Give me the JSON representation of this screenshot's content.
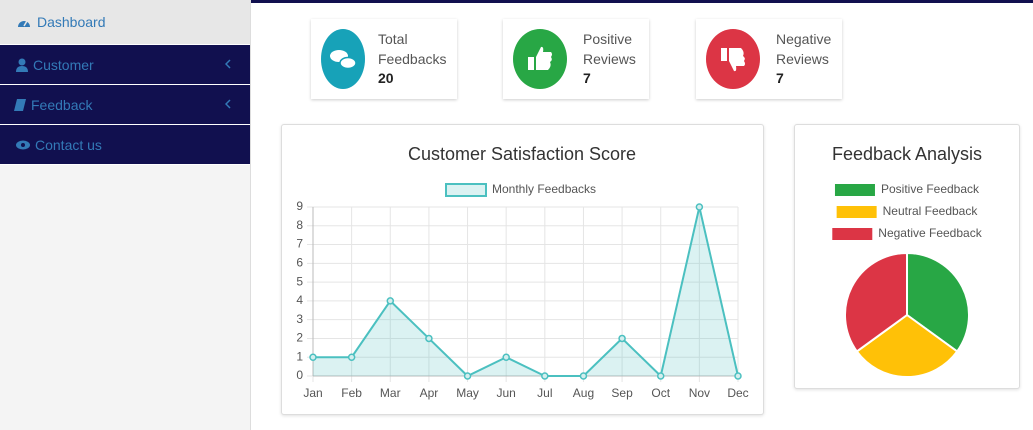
{
  "sidebar": {
    "items": [
      "Dashboard",
      "Customer",
      "Feedback",
      "Contact us"
    ]
  },
  "cards": [
    {
      "label": "Total Feedbacks",
      "value": 20,
      "color": "#17a2b8"
    },
    {
      "label": "Positive Reviews",
      "value": 7,
      "color": "#28a745"
    },
    {
      "label": "Negative Reviews",
      "value": 7,
      "color": "#dc3545"
    }
  ],
  "chart_data": [
    {
      "type": "line",
      "title": "Customer Satisfaction Score",
      "categories": [
        "Jan",
        "Feb",
        "Mar",
        "Apr",
        "May",
        "Jun",
        "Jul",
        "Aug",
        "Sep",
        "Oct",
        "Nov",
        "Dec"
      ],
      "series": [
        {
          "name": "Monthly Feedbacks",
          "color": "#4bc0c0",
          "values": [
            1,
            1,
            4,
            2,
            0,
            1,
            0,
            0,
            2,
            0,
            9,
            0
          ]
        }
      ],
      "ylim": [
        0,
        9
      ],
      "yticks": [
        0,
        1,
        2,
        3,
        4,
        5,
        6,
        7,
        8,
        9
      ],
      "grid": true
    },
    {
      "type": "pie",
      "title": "Feedback Analysis",
      "categories": [
        "Positive Feedback",
        "Neutral Feedback",
        "Negative Feedback"
      ],
      "values": [
        7,
        6,
        7
      ],
      "colors": [
        "#28a745",
        "#ffc107",
        "#dc3545"
      ]
    }
  ]
}
